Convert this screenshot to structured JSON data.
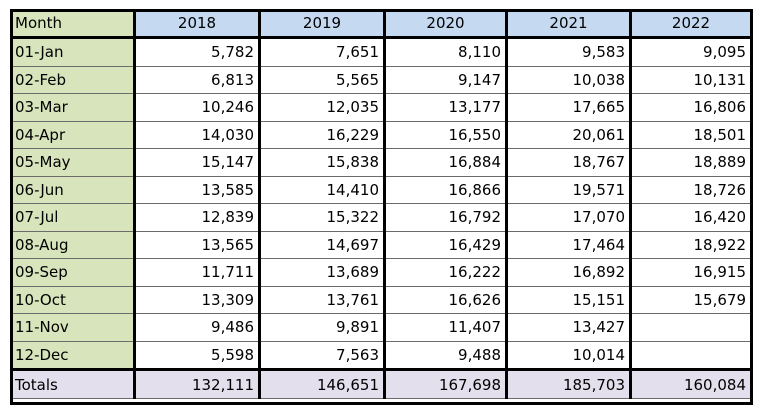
{
  "table": {
    "columns": [
      "Month",
      "2018",
      "2019",
      "2020",
      "2021",
      "2022"
    ],
    "rows": [
      {
        "label": "01-Jan",
        "values": [
          "5,782",
          "7,651",
          "8,110",
          "9,583",
          "9,095"
        ]
      },
      {
        "label": "02-Feb",
        "values": [
          "6,813",
          "5,565",
          "9,147",
          "10,038",
          "10,131"
        ]
      },
      {
        "label": "03-Mar",
        "values": [
          "10,246",
          "12,035",
          "13,177",
          "17,665",
          "16,806"
        ]
      },
      {
        "label": "04-Apr",
        "values": [
          "14,030",
          "16,229",
          "16,550",
          "20,061",
          "18,501"
        ]
      },
      {
        "label": "05-May",
        "values": [
          "15,147",
          "15,838",
          "16,884",
          "18,767",
          "18,889"
        ]
      },
      {
        "label": "06-Jun",
        "values": [
          "13,585",
          "14,410",
          "16,866",
          "19,571",
          "18,726"
        ]
      },
      {
        "label": "07-Jul",
        "values": [
          "12,839",
          "15,322",
          "16,792",
          "17,070",
          "16,420"
        ]
      },
      {
        "label": "08-Aug",
        "values": [
          "13,565",
          "14,697",
          "16,429",
          "17,464",
          "18,922"
        ]
      },
      {
        "label": "09-Sep",
        "values": [
          "11,711",
          "13,689",
          "16,222",
          "16,892",
          "16,915"
        ]
      },
      {
        "label": "10-Oct",
        "values": [
          "13,309",
          "13,761",
          "16,626",
          "15,151",
          "15,679"
        ]
      },
      {
        "label": "11-Nov",
        "values": [
          "9,486",
          "9,891",
          "11,407",
          "13,427",
          ""
        ]
      },
      {
        "label": "12-Dec",
        "values": [
          "5,598",
          "7,563",
          "9,488",
          "10,014",
          ""
        ]
      }
    ],
    "totals": {
      "label": "Totals",
      "values": [
        "132,111",
        "146,651",
        "167,698",
        "185,703",
        "160,084"
      ]
    }
  },
  "colors": {
    "month_column": "#d8e4bc",
    "year_header": "#c5d9f1",
    "totals_row": "#e4dfec",
    "border": "#000000"
  }
}
